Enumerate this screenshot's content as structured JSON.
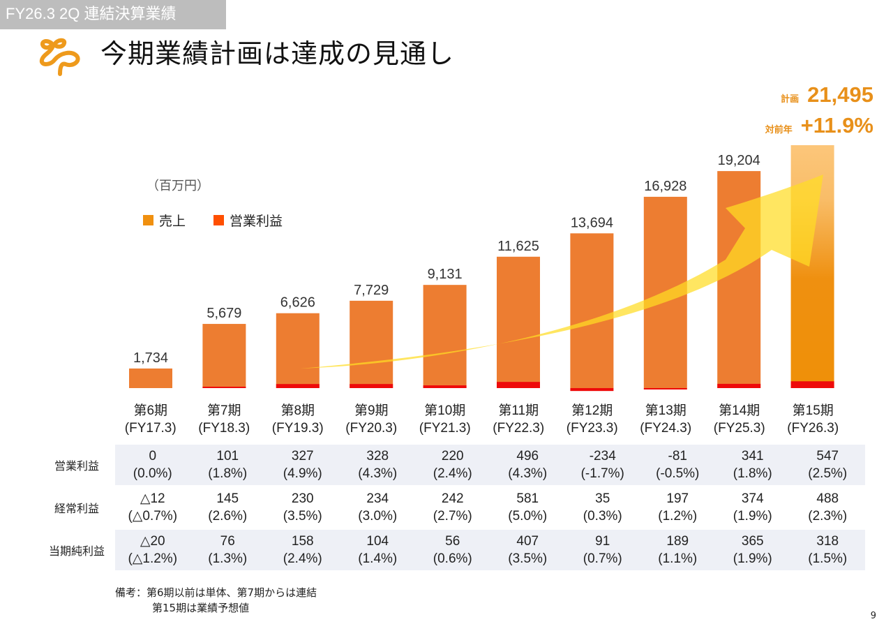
{
  "header": {
    "section_tag": "FY26.3 2Q 連結決算業績",
    "title": "今期業績計画は達成の見通し",
    "logo": "company-logo-sprout"
  },
  "plan": {
    "plan_label": "計画",
    "plan_value": "21,495",
    "yoy_label": "対前年",
    "yoy_value": "+11.9%"
  },
  "colors": {
    "sales": "#ed7d31",
    "sales_forecast": "#ee8e08",
    "operating_profit": "#ee0a0a",
    "legend_sales": "#f0900f",
    "legend_op": "#ff4f00",
    "accent": "#e8901a",
    "arrow": "#ffdf30",
    "table_shade": "#eef0f6"
  },
  "chart_data": {
    "type": "bar",
    "title": "今期業績計画は達成の見通し",
    "unit_label": "（百万円）",
    "xlabel": "",
    "ylabel": "",
    "ylim": [
      -300,
      22000
    ],
    "grid": false,
    "legend_position": "top-left",
    "legend": [
      {
        "name": "売上",
        "color": "#f0900f"
      },
      {
        "name": "営業利益",
        "color": "#ff4f00"
      }
    ],
    "categories": [
      "第6期",
      "第7期",
      "第8期",
      "第9期",
      "第10期",
      "第11期",
      "第12期",
      "第13期",
      "第14期",
      "第15期"
    ],
    "subcategories": [
      "(FY17.3)",
      "(FY18.3)",
      "(FY19.3)",
      "(FY20.3)",
      "(FY21.3)",
      "(FY22.3)",
      "(FY23.3)",
      "(FY24.3)",
      "(FY25.3)",
      "(FY26.3)"
    ],
    "series": [
      {
        "name": "売上",
        "values": [
          1734,
          5679,
          6626,
          7729,
          9131,
          11625,
          13694,
          16928,
          19204,
          21495
        ],
        "labels": [
          "1,734",
          "5,679",
          "6,626",
          "7,729",
          "9,131",
          "11,625",
          "13,694",
          "16,928",
          "19,204",
          ""
        ]
      },
      {
        "name": "営業利益",
        "values": [
          0,
          101,
          327,
          328,
          220,
          496,
          -234,
          -81,
          341,
          547
        ]
      }
    ],
    "forecast_index": 9,
    "annotations": [
      "growth-arrow"
    ]
  },
  "table": {
    "rows": [
      {
        "label": "営業利益",
        "values": [
          "0",
          "101",
          "327",
          "328",
          "220",
          "496",
          "-234",
          "-81",
          "341",
          "547"
        ],
        "ratios": [
          "(0.0%)",
          "(1.8%)",
          "(4.9%)",
          "(4.3%)",
          "(2.4%)",
          "(4.3%)",
          "(-1.7%)",
          "(-0.5%)",
          "(1.8%)",
          "(2.5%)"
        ]
      },
      {
        "label": "経常利益",
        "values": [
          "△12",
          "145",
          "230",
          "234",
          "242",
          "581",
          "35",
          "197",
          "374",
          "488"
        ],
        "ratios": [
          "(△0.7%)",
          "(2.6%)",
          "(3.5%)",
          "(3.0%)",
          "(2.7%)",
          "(5.0%)",
          "(0.3%)",
          "(1.2%)",
          "(1.9%)",
          "(2.3%)"
        ]
      },
      {
        "label": "当期純利益",
        "values": [
          "△20",
          "76",
          "158",
          "104",
          "56",
          "407",
          "91",
          "189",
          "365",
          "318"
        ],
        "ratios": [
          "(△1.2%)",
          "(1.3%)",
          "(2.4%)",
          "(1.4%)",
          "(0.6%)",
          "(3.5%)",
          "(0.7%)",
          "(1.1%)",
          "(1.9%)",
          "(1.5%)"
        ]
      }
    ]
  },
  "notes": {
    "line1": "備考：第6期以前は単体、第7期からは連結",
    "line2": "第15期は業績予想値"
  },
  "page_number": "9"
}
